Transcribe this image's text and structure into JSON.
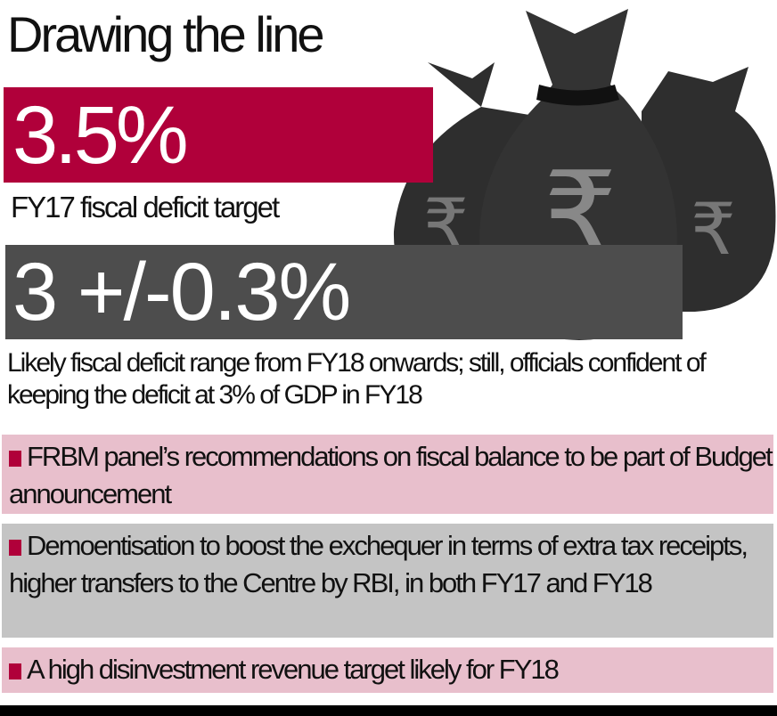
{
  "title": "Drawing the line",
  "stat1": {
    "value": "3.5%",
    "caption": "FY17 fiscal deficit target"
  },
  "stat2": {
    "value": "3 +/-0.3%",
    "caption": "Likely fiscal deficit range from FY18 onwards; still, officials confident of keeping the deficit at 3% of GDP in FY18"
  },
  "illustration": {
    "icon": "money-bags-rupee-icon",
    "symbol": "₹"
  },
  "points": [
    {
      "text": "FRBM panel’s recommendations on fiscal balance to be part of Budget announcement"
    },
    {
      "text": "Demoentisation to boost the exchequer in terms of extra tax receipts, higher transfers to the Centre by RBI, in both FY17 and FY18"
    },
    {
      "text": "A high disinvestment revenue target likely for FY18"
    }
  ],
  "colors": {
    "accent": "#b0003a",
    "dark": "#4d4d4d",
    "pink": "#e8bfcc",
    "grey": "#c4c4c4"
  }
}
